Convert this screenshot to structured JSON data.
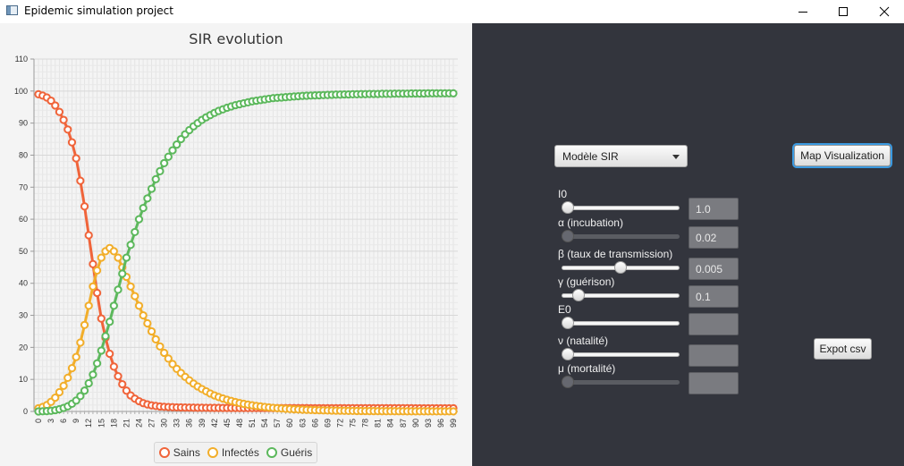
{
  "window": {
    "title": "Epidemic simulation project",
    "minimize_icon": "minimize-icon",
    "maximize_icon": "maximize-icon",
    "close_icon": "close-icon"
  },
  "legend": {
    "items": [
      {
        "label": "Sains",
        "color": "#f0643a"
      },
      {
        "label": "Infectés",
        "color": "#f2ae2a"
      },
      {
        "label": "Guéris",
        "color": "#5cb85c"
      }
    ]
  },
  "controls": {
    "model_select": {
      "selected": "Modèle SIR"
    },
    "map_button": "Map Visualization",
    "export_button": "Expot csv",
    "params": [
      {
        "label": "I0",
        "value": "1.0",
        "slider": 0.0,
        "enabled": true
      },
      {
        "label": "α (incubation)",
        "value": "0.02",
        "slider": 0.0,
        "enabled": false
      },
      {
        "label": "β (taux de transmission)",
        "value": "0.005",
        "slider": 0.5,
        "enabled": true
      },
      {
        "label": "γ (guérison)",
        "value": "0.1",
        "slider": 0.1,
        "enabled": true
      },
      {
        "label": "E0",
        "value": "",
        "slider": 0.0,
        "enabled": true
      },
      {
        "label": "ν (natalité)",
        "value": "",
        "slider": 0.0,
        "enabled": true
      },
      {
        "label": "μ (mortalité)",
        "value": "",
        "slider": 0.0,
        "enabled": false
      }
    ]
  },
  "chart_data": {
    "type": "line",
    "title": "SIR evolution",
    "xlabel": "",
    "ylabel": "",
    "ylim": [
      0,
      110
    ],
    "yticks": [
      0,
      10,
      20,
      30,
      40,
      50,
      60,
      70,
      80,
      90,
      100,
      110
    ],
    "x": [
      0,
      1,
      2,
      3,
      4,
      5,
      6,
      7,
      8,
      9,
      10,
      11,
      12,
      13,
      14,
      15,
      16,
      17,
      18,
      19,
      20,
      21,
      22,
      23,
      24,
      25,
      26,
      27,
      28,
      29,
      30,
      31,
      32,
      33,
      34,
      35,
      36,
      37,
      38,
      39,
      40,
      41,
      42,
      43,
      44,
      45,
      46,
      47,
      48,
      49,
      50,
      51,
      52,
      53,
      54,
      55,
      56,
      57,
      58,
      59,
      60,
      61,
      62,
      63,
      64,
      65,
      66,
      67,
      68,
      69,
      70,
      71,
      72,
      73,
      74,
      75,
      76,
      77,
      78,
      79,
      80,
      81,
      82,
      83,
      84,
      85,
      86,
      87,
      88,
      89,
      90,
      91,
      92,
      93,
      94,
      95,
      96,
      97,
      98,
      99
    ],
    "xtick_labels": [
      "0",
      "3",
      "6",
      "9",
      "12",
      "15",
      "18",
      "21",
      "24",
      "27",
      "30",
      "33",
      "36",
      "39",
      "42",
      "45",
      "48",
      "51",
      "54",
      "57",
      "60",
      "63",
      "66",
      "69",
      "72",
      "75",
      "78",
      "81",
      "84",
      "87",
      "90",
      "93",
      "96",
      "99"
    ],
    "grid": true,
    "legend_position": "bottom",
    "series": [
      {
        "name": "Sains",
        "color": "#f0643a",
        "values": [
          99,
          98.6,
          98,
          97,
          95.5,
          93.5,
          91,
          88,
          84,
          79,
          72,
          64,
          55,
          46,
          37,
          29,
          23,
          18,
          14,
          11,
          8.5,
          6.5,
          5,
          4,
          3.2,
          2.6,
          2.2,
          1.9,
          1.7,
          1.55,
          1.45,
          1.38,
          1.32,
          1.28,
          1.25,
          1.22,
          1.2,
          1.18,
          1.16,
          1.15,
          1.14,
          1.13,
          1.12,
          1.11,
          1.1,
          1.1,
          1.09,
          1.09,
          1.08,
          1.08,
          1.07,
          1.07,
          1.07,
          1.06,
          1.06,
          1.06,
          1.05,
          1.05,
          1.05,
          1.05,
          1.04,
          1.04,
          1.04,
          1.04,
          1.04,
          1.03,
          1.03,
          1.03,
          1.03,
          1.03,
          1.03,
          1.02,
          1.02,
          1.02,
          1.02,
          1.02,
          1.02,
          1.02,
          1.02,
          1.01,
          1.01,
          1.01,
          1.01,
          1.01,
          1.01,
          1.01,
          1.01,
          1.01,
          1.01,
          1.01,
          1.0,
          1.0,
          1.0,
          1.0,
          1.0,
          1.0,
          1.0,
          1.0,
          1.0,
          1.0
        ]
      },
      {
        "name": "Infectés",
        "color": "#f2ae2a",
        "values": [
          1,
          1.4,
          2,
          3,
          4.3,
          6,
          8,
          10.5,
          13.5,
          17,
          21.5,
          27,
          33,
          39,
          44,
          48,
          50,
          51,
          50,
          48,
          45,
          42,
          39,
          36,
          33,
          30,
          27.5,
          25,
          22.5,
          20.3,
          18.3,
          16.5,
          14.8,
          13.3,
          12,
          10.8,
          9.7,
          8.7,
          7.8,
          7,
          6.3,
          5.6,
          5,
          4.5,
          4.05,
          3.64,
          3.27,
          2.94,
          2.64,
          2.37,
          2.13,
          1.92,
          1.73,
          1.56,
          1.4,
          1.26,
          1.14,
          1.03,
          0.93,
          0.84,
          0.76,
          0.68,
          0.62,
          0.56,
          0.5,
          0.45,
          0.41,
          0.37,
          0.33,
          0.3,
          0.27,
          0.24,
          0.22,
          0.2,
          0.18,
          0.16,
          0.15,
          0.13,
          0.12,
          0.11,
          0.1,
          0.09,
          0.08,
          0.07,
          0.06,
          0.06,
          0.05,
          0.05,
          0.04,
          0.04,
          0.04,
          0.03,
          0.03,
          0.03,
          0.02,
          0.02,
          0.02,
          0.02,
          0.02,
          0.02
        ]
      },
      {
        "name": "Guéris",
        "color": "#5cb85c",
        "values": [
          0,
          0.05,
          0.1,
          0.2,
          0.4,
          0.7,
          1.1,
          1.6,
          2.4,
          3.4,
          4.8,
          6.5,
          8.8,
          11.5,
          15,
          19,
          23.5,
          28,
          33,
          38,
          43,
          48,
          52,
          56,
          60,
          63.5,
          66.5,
          69.5,
          72.5,
          75,
          77.5,
          79.5,
          81.5,
          83.3,
          85,
          86.5,
          87.8,
          89,
          90,
          91,
          91.8,
          92.5,
          93.2,
          93.8,
          94.3,
          94.8,
          95.2,
          95.6,
          95.9,
          96.2,
          96.5,
          96.8,
          97,
          97.2,
          97.4,
          97.6,
          97.8,
          97.9,
          98,
          98.1,
          98.2,
          98.3,
          98.4,
          98.5,
          98.55,
          98.6,
          98.65,
          98.7,
          98.75,
          98.8,
          98.85,
          98.9,
          98.9,
          98.95,
          98.95,
          99,
          99,
          99.05,
          99.05,
          99.1,
          99.1,
          99.1,
          99.15,
          99.15,
          99.15,
          99.2,
          99.2,
          99.2,
          99.2,
          99.25,
          99.25,
          99.25,
          99.25,
          99.3,
          99.3,
          99.3,
          99.3,
          99.3,
          99.3,
          99.3
        ]
      }
    ]
  }
}
